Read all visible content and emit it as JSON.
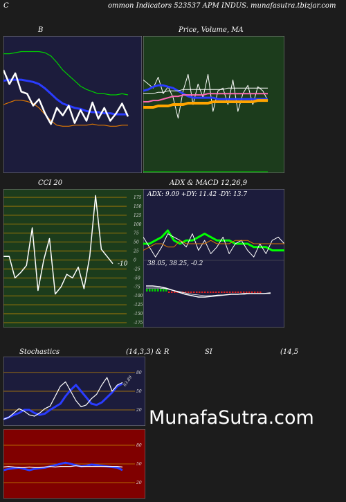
{
  "header": {
    "left": "C",
    "title": "ommon  Indicators 523537 APM INDUS. munafasutra.tbizjar.com",
    "watermark": "MunafaSutra.com"
  },
  "chart_data": [
    {
      "type": "line",
      "title": "B",
      "series": [
        {
          "color": "#00d000",
          "values": [
            70,
            70,
            71,
            72,
            72,
            72,
            72,
            71,
            68,
            62,
            55,
            50,
            45,
            40,
            37,
            35,
            33,
            33,
            32,
            32,
            33,
            32
          ]
        },
        {
          "color": "#2a3cff",
          "values": [
            45,
            46,
            46,
            46,
            45,
            44,
            42,
            38,
            33,
            28,
            24,
            22,
            20,
            19,
            17,
            16,
            16,
            15,
            15,
            14,
            14,
            14
          ]
        },
        {
          "color": "#e07800",
          "values": [
            23,
            25,
            27,
            27,
            26,
            24,
            20,
            14,
            8,
            4,
            3,
            3,
            4,
            4,
            4,
            5,
            4,
            4,
            3,
            3,
            4,
            4
          ]
        },
        {
          "color": "#ffffff",
          "values": [
            55,
            42,
            52,
            35,
            33,
            22,
            28,
            15,
            5,
            20,
            13,
            22,
            6,
            18,
            8,
            25,
            10,
            20,
            8,
            15,
            24,
            12
          ]
        }
      ]
    },
    {
      "type": "line",
      "title": "Price,  Volume,  MA",
      "series": [
        {
          "color": "#ffffff",
          "values": [
            68,
            65,
            62,
            70,
            58,
            63,
            55,
            40,
            60,
            72,
            50,
            65,
            55,
            72,
            45,
            60,
            62,
            50,
            68,
            45,
            58,
            64,
            50,
            63,
            60,
            53
          ]
        },
        {
          "color": "#2a3cff",
          "values": [
            60,
            61,
            63,
            64,
            64,
            63,
            62,
            60,
            58,
            56,
            55,
            55,
            55,
            55,
            55,
            54,
            54,
            54,
            54,
            54,
            54,
            54,
            54,
            54,
            54,
            54
          ]
        },
        {
          "color": "#ff69b4",
          "values": [
            52,
            52,
            53,
            53,
            54,
            55,
            56,
            56,
            57,
            57,
            57,
            57,
            57,
            58,
            58,
            58,
            58,
            58,
            58,
            58,
            58,
            58,
            58,
            58,
            58,
            58
          ]
        },
        {
          "color": "#ffa500",
          "values": [
            48,
            48,
            48,
            49,
            49,
            49,
            50,
            50,
            50,
            51,
            51,
            51,
            51,
            51,
            52,
            52,
            52,
            52,
            52,
            52,
            52,
            52,
            52,
            53,
            53,
            53
          ]
        },
        {
          "color": "#ffffff",
          "values": [
            58,
            58,
            58,
            59,
            59,
            60,
            60,
            60,
            61,
            61,
            61,
            61,
            61,
            61,
            61,
            61,
            61,
            62,
            62,
            62,
            62,
            62,
            62,
            62,
            62,
            62
          ]
        }
      ]
    },
    {
      "type": "line",
      "title": "CCI 20",
      "ylim": [
        -175,
        175
      ],
      "yticks": [
        175,
        150,
        125,
        100,
        75,
        50,
        25,
        0,
        -25,
        -50,
        -75,
        -100,
        -125,
        -150,
        -175
      ],
      "last_label": "-10",
      "series": [
        {
          "color": "#ffffff",
          "values": [
            10,
            10,
            -50,
            -35,
            -15,
            90,
            -85,
            0,
            60,
            -95,
            -75,
            -40,
            -50,
            -20,
            -80,
            10,
            180,
            30,
            10,
            -10
          ]
        }
      ]
    },
    {
      "type": "line",
      "title": "ADX  & MACD 12,26,9",
      "subtitle": "ADX: 9.09 +DY: 11.42  -DY: 13.7",
      "macd_text": "38.05,  38.25,  -0.2",
      "series": [
        {
          "color": "#00ff00",
          "values": [
            11,
            11,
            12,
            13,
            15,
            12,
            11,
            12,
            12,
            13,
            14,
            13,
            12,
            12,
            12,
            11,
            11,
            11,
            10,
            10,
            10,
            9,
            9,
            9
          ]
        },
        {
          "color": "#ffffff",
          "values": [
            13,
            10,
            7,
            10,
            14,
            13,
            12,
            10,
            14,
            9,
            12,
            8,
            10,
            13,
            8,
            11,
            12,
            9,
            7,
            11,
            8,
            12,
            13,
            11
          ]
        },
        {
          "color": "#e07800",
          "values": [
            9,
            10,
            11,
            11,
            10,
            10,
            12,
            11,
            11,
            11,
            11,
            12,
            11,
            11,
            11,
            12,
            12,
            12,
            11,
            11,
            11,
            11,
            11,
            11
          ]
        }
      ]
    },
    {
      "type": "line",
      "title": "Stochastics",
      "params": "(14,3,3) & R",
      "ylim": [
        0,
        100
      ],
      "yticks": [
        80,
        50,
        20
      ],
      "last_label": "63.89",
      "series": [
        {
          "color": "#2a3cff",
          "values": [
            5,
            8,
            12,
            15,
            20,
            20,
            15,
            12,
            14,
            20,
            25,
            30,
            42,
            52,
            60,
            50,
            40,
            30,
            28,
            32,
            40,
            48,
            58,
            62
          ]
        },
        {
          "color": "#ffffff",
          "values": [
            5,
            8,
            15,
            22,
            18,
            12,
            10,
            15,
            22,
            26,
            42,
            58,
            65,
            50,
            35,
            25,
            28,
            38,
            45,
            60,
            72,
            50,
            60,
            64
          ]
        }
      ]
    },
    {
      "type": "line",
      "title": "SI",
      "params": "(14,5",
      "ylim": [
        0,
        100
      ],
      "yticks": [
        80,
        50,
        20
      ],
      "series": [
        {
          "color": "#2a3cff",
          "values": [
            40,
            42,
            43,
            44,
            42,
            40,
            42,
            43,
            44,
            46,
            48,
            50,
            52,
            50,
            48,
            46,
            47,
            49,
            48,
            47,
            46,
            45,
            44,
            40
          ]
        },
        {
          "color": "#ffffff",
          "values": [
            45,
            46,
            45,
            44,
            44,
            45,
            44,
            44,
            45,
            46,
            45,
            46,
            46,
            46,
            47,
            46,
            46,
            46,
            46,
            46,
            46,
            46,
            46,
            45
          ]
        }
      ]
    }
  ]
}
